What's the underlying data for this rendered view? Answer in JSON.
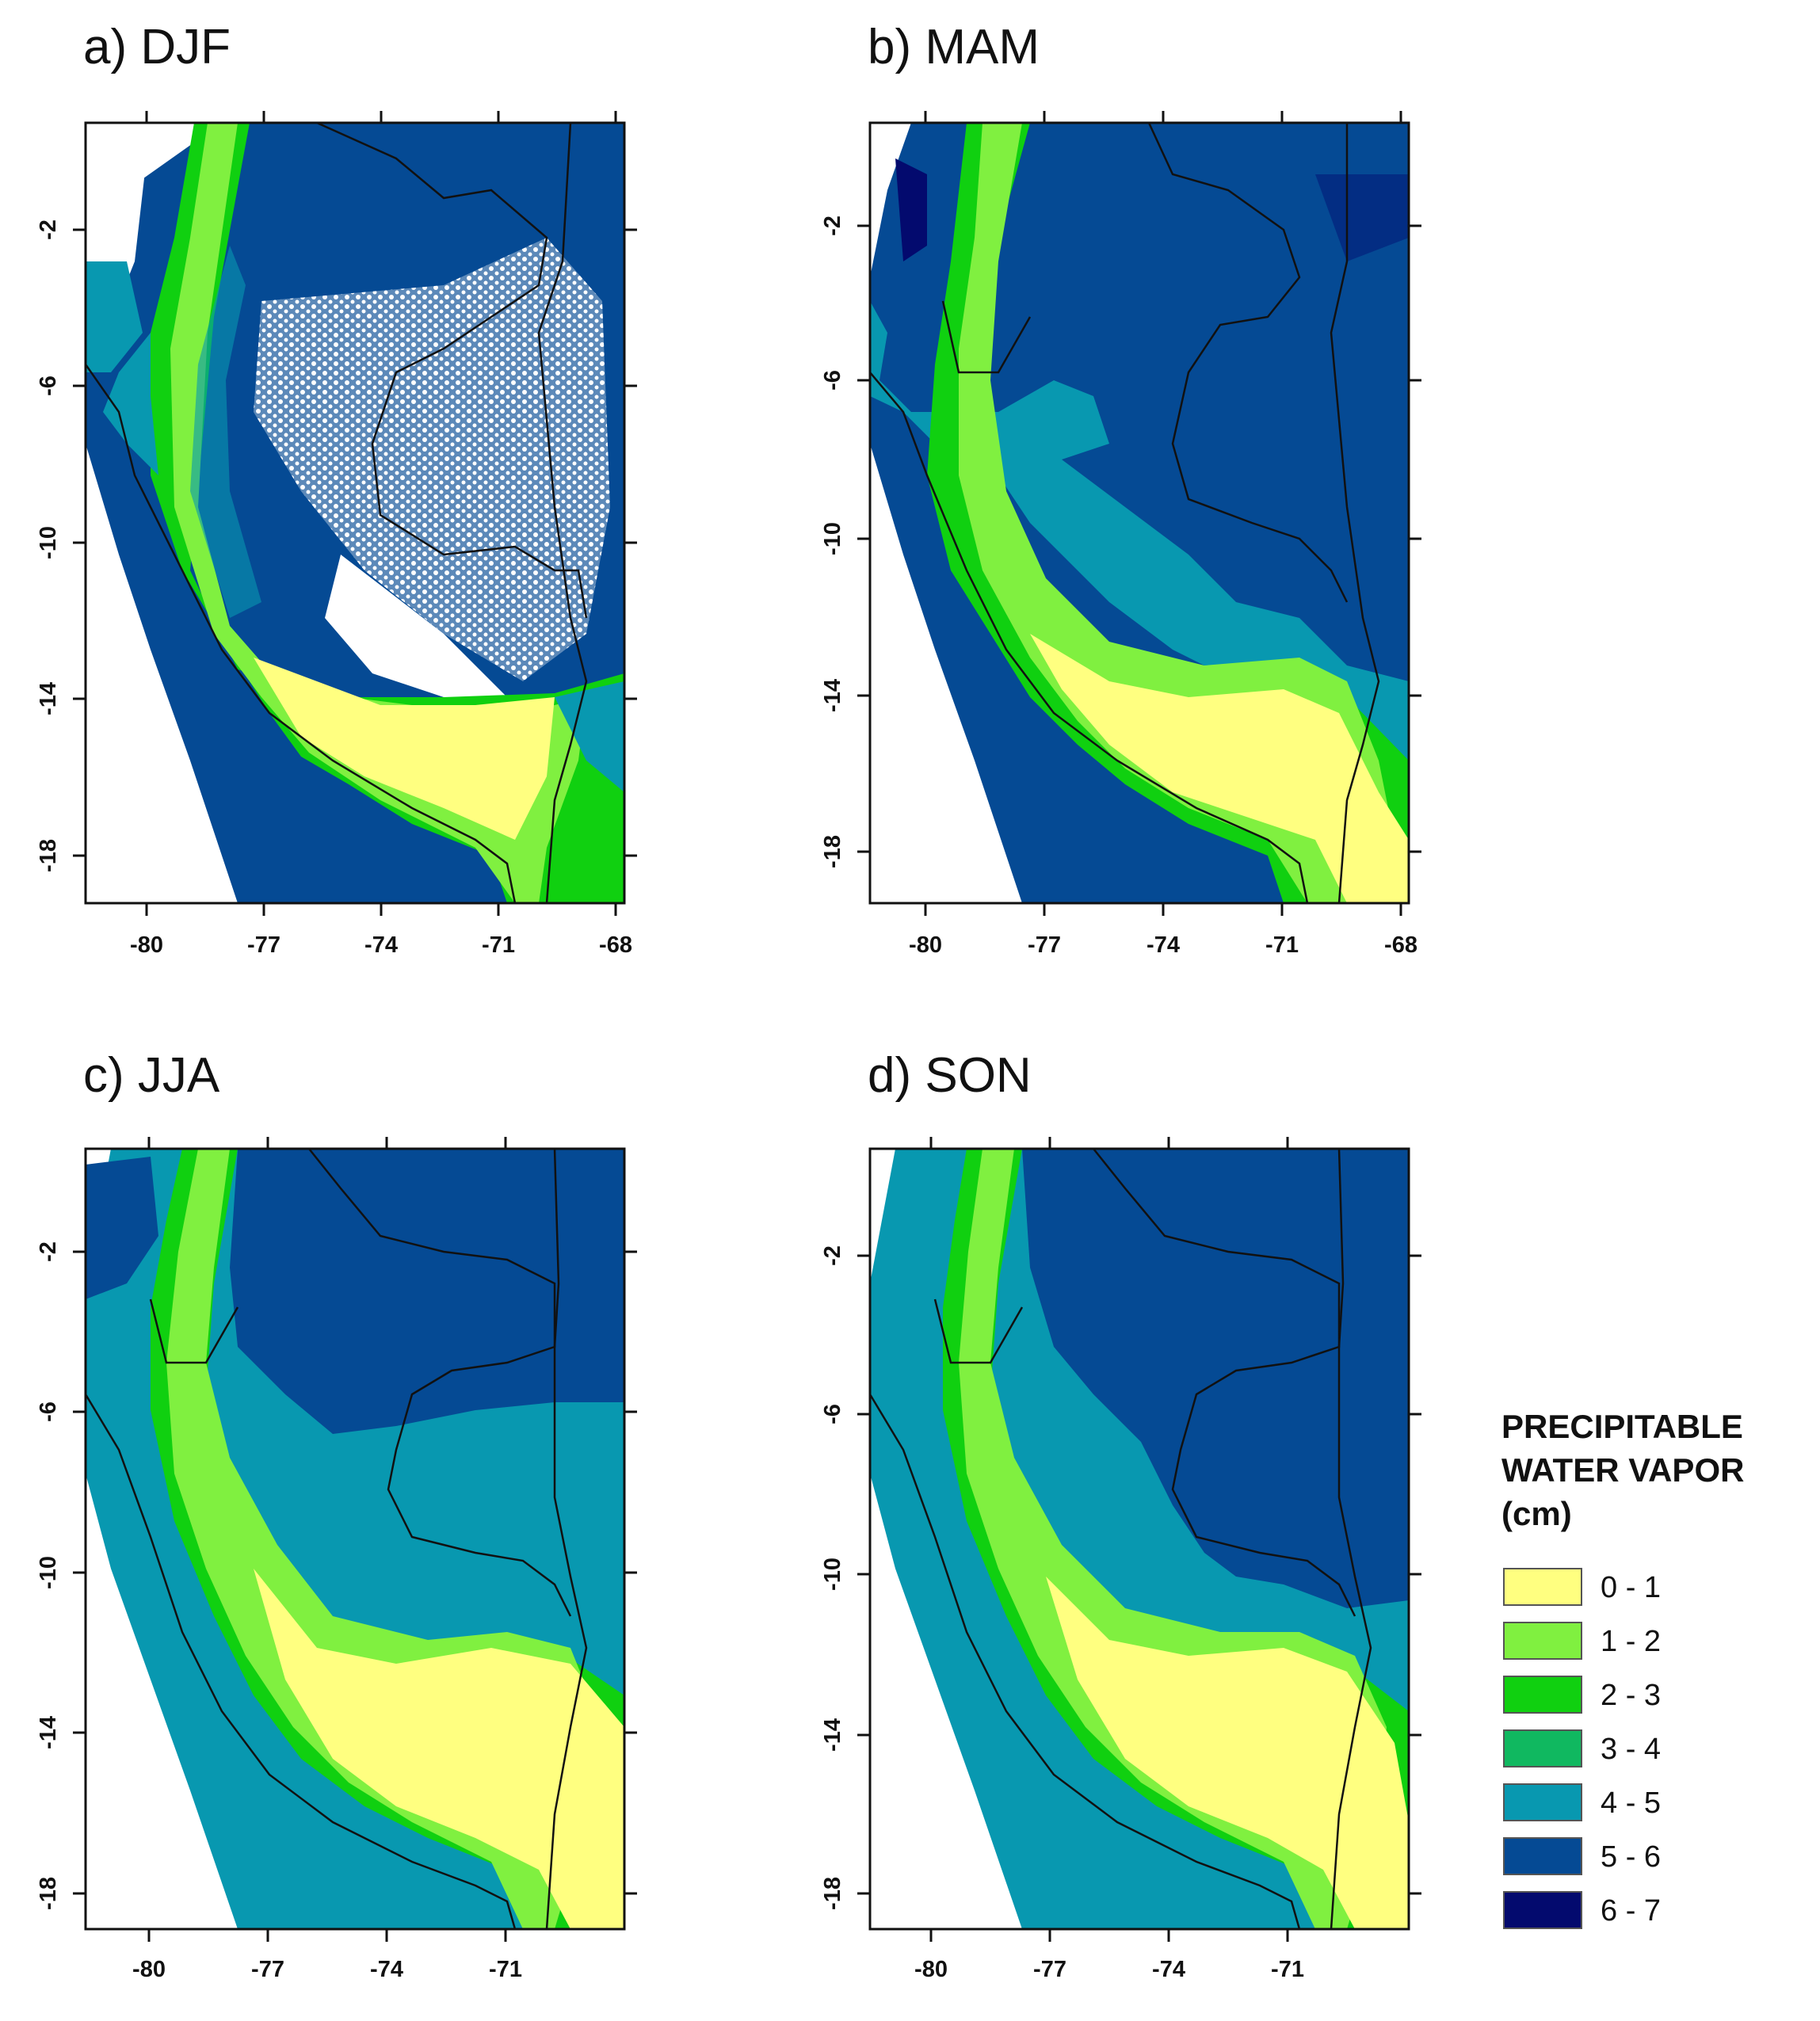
{
  "panels": [
    {
      "title": "a) DJF",
      "lon_ticks": [
        "-80",
        "-77",
        "-74",
        "-71",
        "-68"
      ],
      "lat_ticks": [
        "-2",
        "-6",
        "-10",
        "-14",
        "-18"
      ]
    },
    {
      "title": "b) MAM",
      "lon_ticks": [
        "-80",
        "-77",
        "-74",
        "-71",
        "-68"
      ],
      "lat_ticks": [
        "-2",
        "-6",
        "-10",
        "-14",
        "-18"
      ]
    },
    {
      "title": "c) JJA",
      "lon_ticks": [
        "-80",
        "-77",
        "-74",
        "-71"
      ],
      "lat_ticks": [
        "-2",
        "-6",
        "-10",
        "-14",
        "-18"
      ]
    },
    {
      "title": "d) SON",
      "lon_ticks": [
        "-80",
        "-77",
        "-74",
        "-71"
      ],
      "lat_ticks": [
        "-2",
        "-6",
        "-10",
        "-14",
        "-18"
      ]
    }
  ],
  "legend": {
    "title_lines": [
      "PRECIPITABLE",
      "WATER VAPOR",
      "(cm)"
    ],
    "classes": [
      {
        "label": "0 - 1",
        "color": "#ffff80"
      },
      {
        "label": "1 - 2",
        "color": "#80f040"
      },
      {
        "label": "2 - 3",
        "color": "#10d010"
      },
      {
        "label": "3 - 4",
        "color": "#10b860"
      },
      {
        "label": "4 - 5",
        "color": "#0898b0"
      },
      {
        "label": "5 - 6",
        "color": "#054a94"
      },
      {
        "label": "6 - 7",
        "color": "#030a6e"
      }
    ]
  }
}
